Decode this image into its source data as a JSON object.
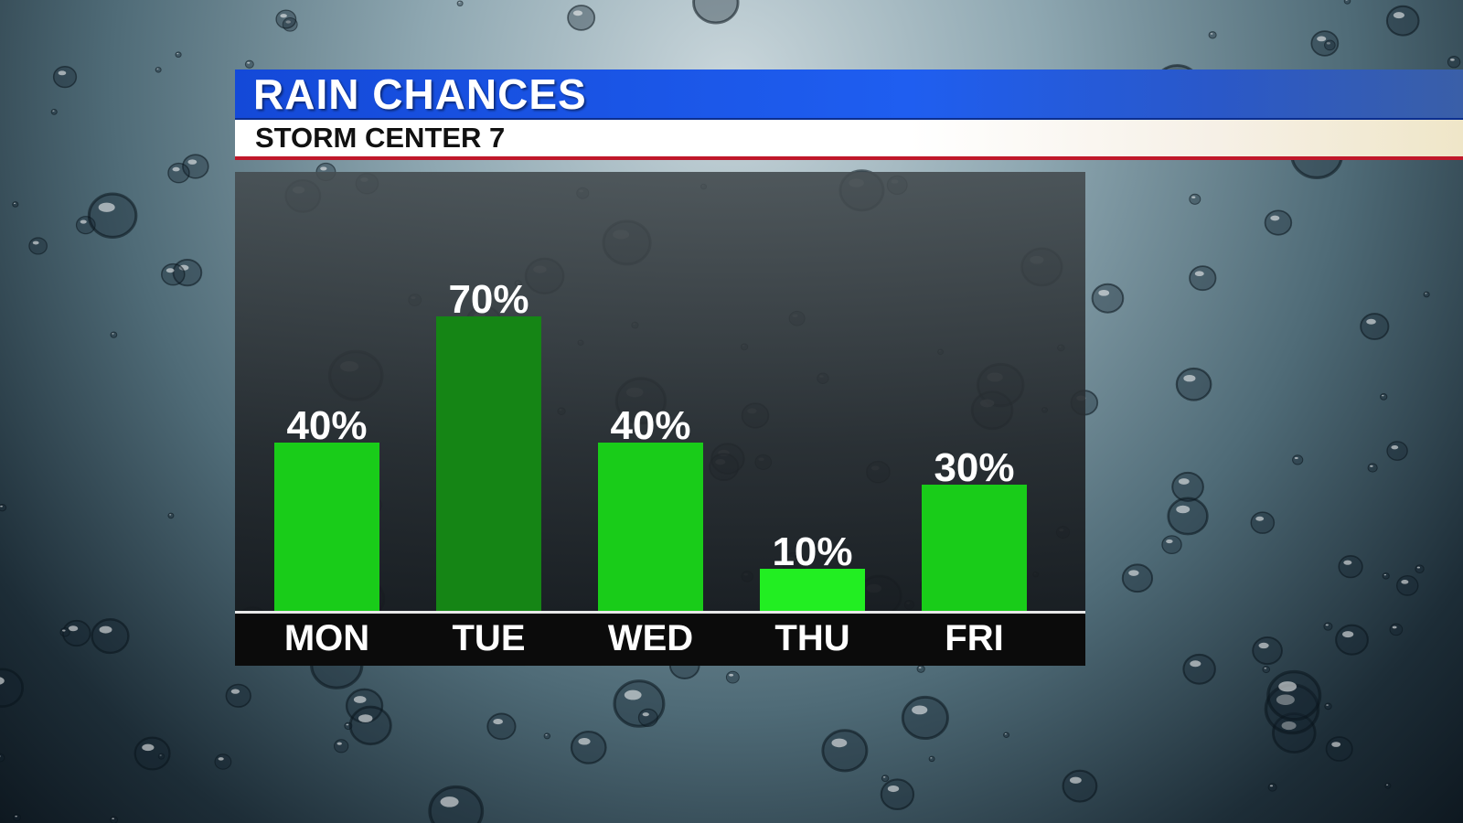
{
  "header": {
    "title": "RAIN CHANCES",
    "subtitle": "STORM CENTER 7"
  },
  "colors": {
    "bar_default": "#19cc19",
    "bar_highlight": "#158515",
    "bar_low": "#22ee22",
    "title_bar": "#1f5ef0",
    "accent_red": "#c0182a"
  },
  "chart_data": {
    "type": "bar",
    "categories": [
      "MON",
      "TUE",
      "WED",
      "THU",
      "FRI"
    ],
    "values": [
      40,
      70,
      40,
      10,
      30
    ],
    "value_labels": [
      "40%",
      "70%",
      "40%",
      "10%",
      "30%"
    ],
    "bar_colors": [
      "#19cc19",
      "#158515",
      "#19cc19",
      "#22ee22",
      "#19cc19"
    ],
    "ylim": [
      0,
      100
    ],
    "grid": false,
    "legend": "none"
  }
}
